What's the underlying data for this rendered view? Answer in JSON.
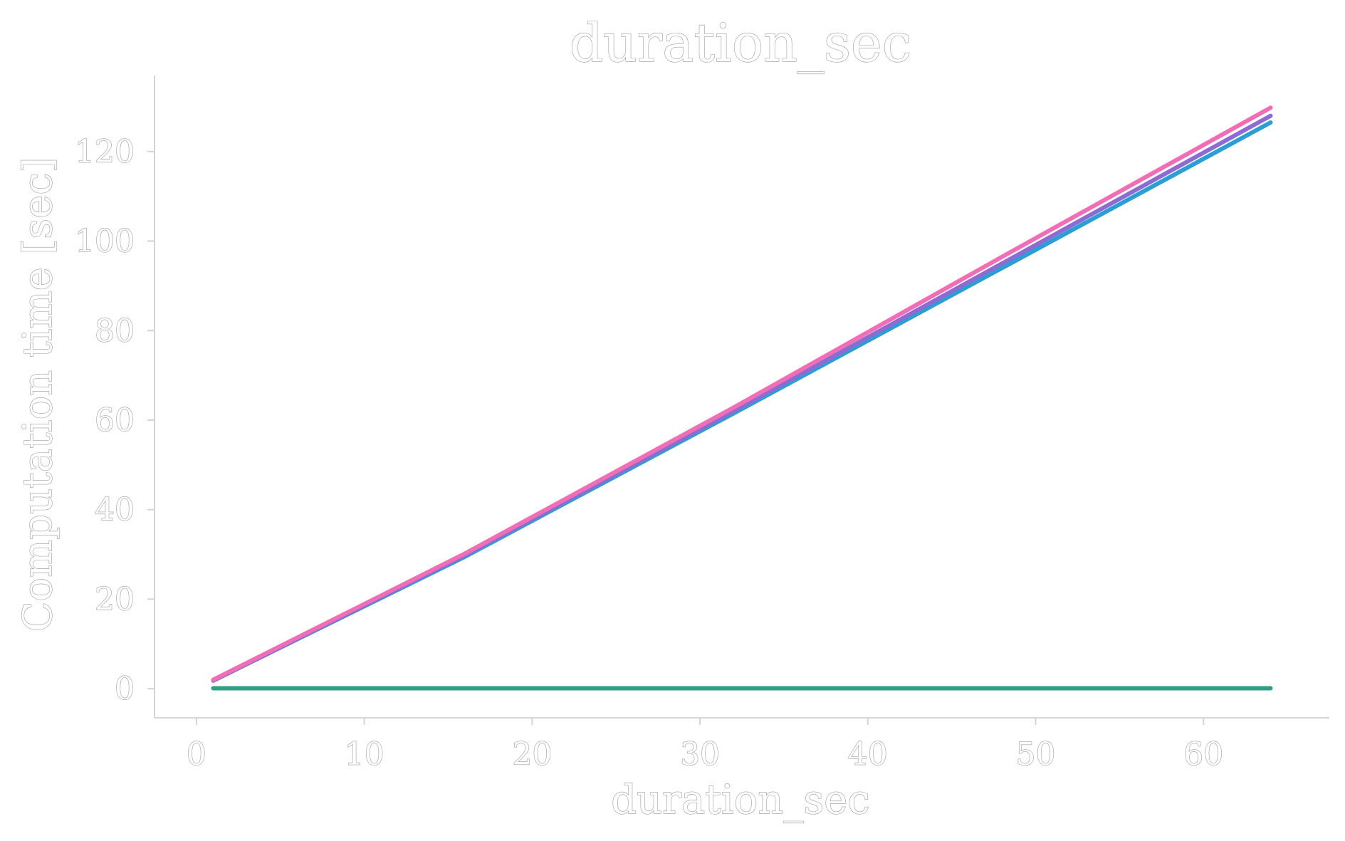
{
  "chart_data": {
    "type": "line",
    "title": "duration_sec",
    "xlabel": "duration_sec",
    "ylabel": "Computation time [sec]",
    "xlim": [
      -2.5,
      67.5
    ],
    "ylim": [
      -6.5,
      137
    ],
    "x_ticks": [
      0,
      10,
      20,
      30,
      40,
      50,
      60
    ],
    "y_ticks": [
      0,
      20,
      40,
      60,
      80,
      100,
      120
    ],
    "grid": false,
    "legend": "none",
    "series": [
      {
        "color": "#2a9fd6",
        "x": [
          1,
          16,
          32,
          48,
          64
        ],
        "y": [
          1.8,
          29.5,
          61.5,
          94,
          126.5
        ]
      },
      {
        "color": "#8e6bd1",
        "x": [
          1,
          16,
          32,
          48,
          64
        ],
        "y": [
          1.8,
          29.8,
          62,
          95,
          128
        ]
      },
      {
        "color": "#f06eb5",
        "x": [
          1,
          16,
          32,
          48,
          64
        ],
        "y": [
          2.0,
          30.2,
          62.8,
          96.5,
          129.8
        ]
      },
      {
        "color": "#2e9e85",
        "x": [
          1,
          16,
          32,
          48,
          64
        ],
        "y": [
          0.1,
          0.1,
          0.1,
          0.1,
          0.1
        ]
      }
    ]
  }
}
